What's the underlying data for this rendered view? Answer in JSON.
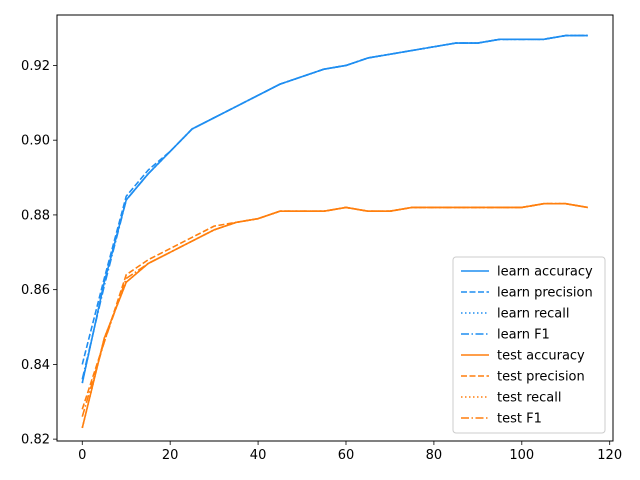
{
  "chart_data": {
    "type": "line",
    "title": "",
    "xlabel": "",
    "ylabel": "",
    "xlim": [
      -5.75,
      120.75
    ],
    "ylim": [
      0.8195,
      0.9335
    ],
    "xticks": [
      0,
      20,
      40,
      60,
      80,
      100,
      120
    ],
    "xtick_labels": [
      "0",
      "20",
      "40",
      "60",
      "80",
      "100",
      "120"
    ],
    "yticks": [
      0.82,
      0.84,
      0.86,
      0.88,
      0.9,
      0.92
    ],
    "ytick_labels": [
      "0.82",
      "0.84",
      "0.86",
      "0.88",
      "0.90",
      "0.92"
    ],
    "grid": false,
    "legend_position": "lower-right",
    "colors": {
      "learn": "#1f8ef1",
      "test": "#ff7f0e"
    },
    "x": [
      0,
      5,
      10,
      15,
      20,
      25,
      30,
      35,
      40,
      45,
      50,
      55,
      60,
      65,
      70,
      75,
      80,
      85,
      90,
      95,
      100,
      105,
      110,
      115
    ],
    "series": [
      {
        "name": "learn accuracy",
        "group": "learn",
        "dash": "solid",
        "values": [
          0.835,
          0.862,
          0.884,
          0.891,
          0.897,
          0.903,
          0.906,
          0.909,
          0.912,
          0.915,
          0.917,
          0.919,
          0.92,
          0.922,
          0.923,
          0.924,
          0.925,
          0.926,
          0.926,
          0.927,
          0.927,
          0.927,
          0.928,
          0.928
        ]
      },
      {
        "name": "learn precision",
        "group": "learn",
        "dash": "dashed",
        "values": [
          0.84,
          0.863,
          0.885,
          0.892,
          0.897,
          0.903,
          0.906,
          0.909,
          0.912,
          0.915,
          0.917,
          0.919,
          0.92,
          0.922,
          0.923,
          0.924,
          0.925,
          0.926,
          0.926,
          0.927,
          0.927,
          0.927,
          0.928,
          0.928
        ]
      },
      {
        "name": "learn recall",
        "group": "learn",
        "dash": "dotted",
        "values": [
          0.835,
          0.862,
          0.884,
          0.891,
          0.897,
          0.903,
          0.906,
          0.909,
          0.912,
          0.915,
          0.917,
          0.919,
          0.92,
          0.922,
          0.923,
          0.924,
          0.925,
          0.926,
          0.926,
          0.927,
          0.927,
          0.927,
          0.928,
          0.928
        ]
      },
      {
        "name": "learn F1",
        "group": "learn",
        "dash": "dashdot",
        "values": [
          0.836,
          0.861,
          0.884,
          0.891,
          0.897,
          0.903,
          0.906,
          0.909,
          0.912,
          0.915,
          0.917,
          0.919,
          0.92,
          0.922,
          0.923,
          0.924,
          0.925,
          0.926,
          0.926,
          0.927,
          0.927,
          0.927,
          0.928,
          0.928
        ]
      },
      {
        "name": "test accuracy",
        "group": "test",
        "dash": "solid",
        "values": [
          0.823,
          0.847,
          0.862,
          0.867,
          0.87,
          0.873,
          0.876,
          0.878,
          0.879,
          0.881,
          0.881,
          0.881,
          0.882,
          0.881,
          0.881,
          0.882,
          0.882,
          0.882,
          0.882,
          0.882,
          0.882,
          0.883,
          0.883,
          0.882
        ]
      },
      {
        "name": "test precision",
        "group": "test",
        "dash": "dashed",
        "values": [
          0.828,
          0.846,
          0.864,
          0.868,
          0.871,
          0.874,
          0.877,
          0.878,
          0.879,
          0.881,
          0.881,
          0.881,
          0.882,
          0.881,
          0.881,
          0.882,
          0.882,
          0.882,
          0.882,
          0.882,
          0.882,
          0.883,
          0.883,
          0.882
        ]
      },
      {
        "name": "test recall",
        "group": "test",
        "dash": "dotted",
        "values": [
          0.823,
          0.847,
          0.862,
          0.867,
          0.87,
          0.873,
          0.876,
          0.878,
          0.879,
          0.881,
          0.881,
          0.881,
          0.882,
          0.881,
          0.881,
          0.882,
          0.882,
          0.882,
          0.882,
          0.882,
          0.882,
          0.883,
          0.883,
          0.882
        ]
      },
      {
        "name": "test F1",
        "group": "test",
        "dash": "dashdot",
        "values": [
          0.826,
          0.846,
          0.863,
          0.867,
          0.87,
          0.873,
          0.876,
          0.878,
          0.879,
          0.881,
          0.881,
          0.881,
          0.882,
          0.881,
          0.881,
          0.882,
          0.882,
          0.882,
          0.882,
          0.882,
          0.882,
          0.883,
          0.883,
          0.882
        ]
      }
    ]
  }
}
